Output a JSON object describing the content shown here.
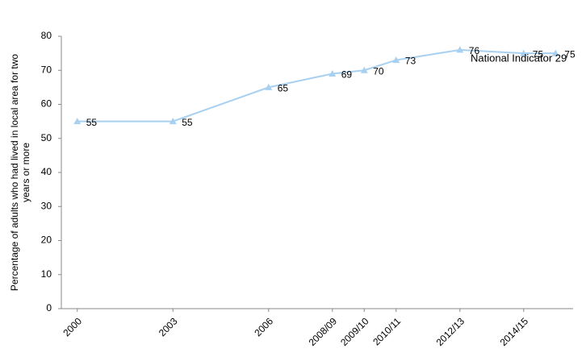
{
  "chart_data": {
    "type": "line",
    "y_label": "Percentage of adults who had lived in local area for two years or more",
    "x": [
      2000,
      2003,
      2006,
      2008,
      2009,
      2010,
      2012,
      2014,
      2015
    ],
    "series": [
      {
        "name": "National Indicator 29",
        "color": "#a8d0f0",
        "values": [
          55,
          55,
          65,
          69,
          70,
          73,
          76,
          75,
          75
        ]
      }
    ],
    "xlim": [
      1999.5,
      2015.55
    ],
    "xticks": [
      2000,
      2003,
      2006,
      {
        "value": 2008,
        "label": "2008/09"
      },
      {
        "value": 2009,
        "label": "2009/10"
      },
      {
        "value": 2010,
        "label": "2010/11"
      },
      {
        "value": 2012,
        "label": "2012/13"
      },
      {
        "value": 2014,
        "label": "2014/15"
      }
    ],
    "ylim": [
      0,
      80
    ],
    "yticks": [
      0,
      10,
      20,
      30,
      40,
      50,
      60,
      70,
      80
    ],
    "grid": false
  }
}
